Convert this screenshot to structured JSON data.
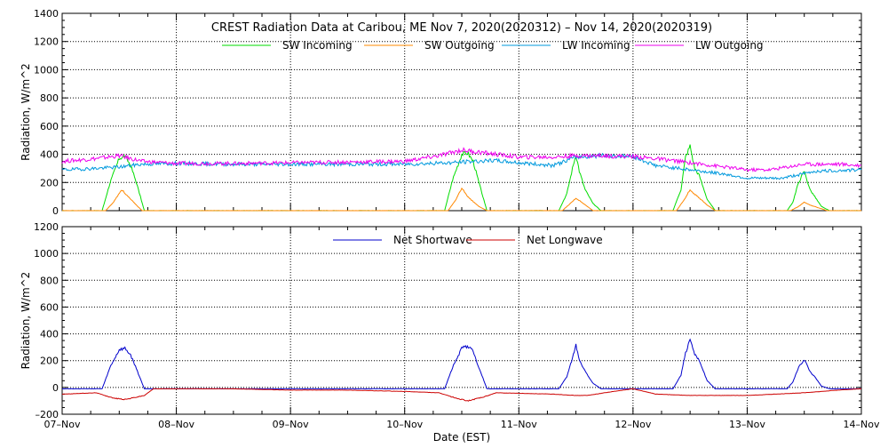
{
  "chart_data": [
    {
      "type": "line",
      "title": "CREST Radiation Data at Caribou, ME   Nov  7, 2020(2020312) – Nov 14, 2020(2020319)",
      "ylabel": "Radiation, W/m^2",
      "xlabel": "",
      "ylim": [
        0,
        1400
      ],
      "xlim": [
        0,
        7
      ],
      "yticks": [
        0,
        200,
        400,
        600,
        800,
        1000,
        1200,
        1400
      ],
      "ytick_labels": [
        "0",
        "200",
        "400",
        "600",
        "800",
        "1000",
        "1200",
        "1400"
      ],
      "grid": true,
      "legend_position": "top",
      "series": [
        {
          "name": "SW Incoming",
          "color": "#00dd00",
          "x": [
            0,
            0.35,
            0.42,
            0.5,
            0.55,
            0.6,
            0.65,
            0.72,
            2.0,
            3.35,
            3.42,
            3.5,
            3.55,
            3.6,
            3.65,
            3.72,
            4.35,
            4.42,
            4.47,
            4.5,
            4.53,
            4.58,
            4.65,
            4.72,
            5.35,
            5.42,
            5.46,
            5.5,
            5.54,
            5.58,
            5.65,
            5.72,
            6.35,
            6.4,
            6.45,
            6.5,
            6.55,
            6.6,
            6.65,
            6.72,
            7.0
          ],
          "y": [
            0,
            0,
            200,
            370,
            390,
            320,
            200,
            0,
            0,
            0,
            220,
            400,
            410,
            350,
            200,
            0,
            0,
            120,
            300,
            400,
            280,
            150,
            50,
            0,
            0,
            150,
            380,
            460,
            300,
            250,
            80,
            0,
            0,
            60,
            200,
            280,
            150,
            90,
            30,
            0,
            0
          ]
        },
        {
          "name": "SW Outgoing",
          "color": "#ff8800",
          "x": [
            0,
            0.38,
            0.45,
            0.52,
            0.6,
            0.7,
            2.0,
            3.38,
            3.45,
            3.5,
            3.55,
            3.65,
            3.72,
            4.38,
            4.45,
            4.5,
            4.55,
            4.65,
            5.38,
            5.45,
            5.5,
            5.55,
            5.65,
            5.72,
            6.38,
            6.45,
            6.5,
            6.55,
            6.7,
            7.0
          ],
          "y": [
            0,
            0,
            60,
            150,
            80,
            0,
            0,
            0,
            80,
            160,
            100,
            30,
            0,
            0,
            50,
            90,
            60,
            0,
            0,
            80,
            150,
            110,
            40,
            0,
            0,
            30,
            60,
            40,
            0,
            0
          ]
        },
        {
          "name": "LW Incoming",
          "color": "#0099dd",
          "x": [
            0,
            0.3,
            0.5,
            0.7,
            1.0,
            1.5,
            2.0,
            2.5,
            3.0,
            3.2,
            3.4,
            3.6,
            3.8,
            4.0,
            4.3,
            4.5,
            4.7,
            5.0,
            5.2,
            5.5,
            5.8,
            6.0,
            6.3,
            6.6,
            7.0
          ],
          "y": [
            290,
            300,
            310,
            330,
            335,
            330,
            330,
            330,
            330,
            335,
            340,
            350,
            355,
            340,
            320,
            380,
            390,
            385,
            320,
            290,
            260,
            230,
            230,
            280,
            290
          ]
        },
        {
          "name": "LW Outgoing",
          "color": "#ee00ee",
          "x": [
            0,
            0.3,
            0.5,
            0.7,
            1.0,
            1.5,
            2.0,
            2.5,
            3.0,
            3.3,
            3.5,
            3.7,
            4.0,
            4.3,
            4.5,
            4.7,
            5.0,
            5.3,
            5.5,
            5.8,
            6.0,
            6.2,
            6.5,
            6.8,
            7.0
          ],
          "y": [
            350,
            370,
            390,
            350,
            335,
            335,
            340,
            345,
            350,
            390,
            430,
            410,
            380,
            380,
            390,
            390,
            385,
            360,
            340,
            310,
            290,
            290,
            330,
            330,
            320
          ]
        }
      ]
    },
    {
      "type": "line",
      "title": "",
      "ylabel": "Radiation, W/m^2",
      "xlabel": "Date (EST)",
      "ylim": [
        -200,
        1200
      ],
      "xlim": [
        0,
        7
      ],
      "yticks": [
        -200,
        0,
        200,
        400,
        600,
        800,
        1000,
        1200
      ],
      "ytick_labels": [
        "–200",
        "0",
        "200",
        "400",
        "600",
        "800",
        "1000",
        "1200"
      ],
      "categories": [
        "07–Nov",
        "08–Nov",
        "09–Nov",
        "10–Nov",
        "11–Nov",
        "12–Nov",
        "13–Nov",
        "14–Nov"
      ],
      "grid": true,
      "legend_position": "top",
      "series": [
        {
          "name": "Net Shortwave",
          "color": "#0000cc",
          "x": [
            0,
            0.35,
            0.42,
            0.5,
            0.55,
            0.6,
            0.65,
            0.72,
            2.0,
            3.35,
            3.42,
            3.5,
            3.55,
            3.6,
            3.65,
            3.72,
            4.35,
            4.42,
            4.47,
            4.5,
            4.53,
            4.58,
            4.65,
            4.72,
            5.35,
            5.42,
            5.46,
            5.5,
            5.54,
            5.58,
            5.65,
            5.72,
            6.35,
            6.4,
            6.45,
            6.5,
            6.55,
            6.6,
            6.65,
            6.72,
            7.0
          ],
          "y": [
            -10,
            -10,
            150,
            280,
            290,
            240,
            140,
            -10,
            -10,
            -10,
            150,
            290,
            310,
            270,
            150,
            -10,
            -10,
            80,
            220,
            320,
            210,
            120,
            30,
            -10,
            -10,
            90,
            260,
            350,
            250,
            200,
            50,
            -10,
            -10,
            40,
            150,
            210,
            120,
            70,
            10,
            -10,
            -10
          ]
        },
        {
          "name": "Net Longwave",
          "color": "#cc0000",
          "x": [
            0,
            0.3,
            0.45,
            0.55,
            0.72,
            0.8,
            1.5,
            2.0,
            2.5,
            3.0,
            3.3,
            3.45,
            3.55,
            3.7,
            3.8,
            4.3,
            4.5,
            4.6,
            4.75,
            5.0,
            5.2,
            5.5,
            5.7,
            6.0,
            6.5,
            6.8,
            7.0
          ],
          "y": [
            -50,
            -40,
            -80,
            -90,
            -60,
            -10,
            -10,
            -20,
            -20,
            -30,
            -40,
            -80,
            -100,
            -70,
            -40,
            -50,
            -60,
            -60,
            -40,
            -10,
            -50,
            -60,
            -60,
            -60,
            -40,
            -20,
            -10
          ]
        }
      ]
    }
  ]
}
